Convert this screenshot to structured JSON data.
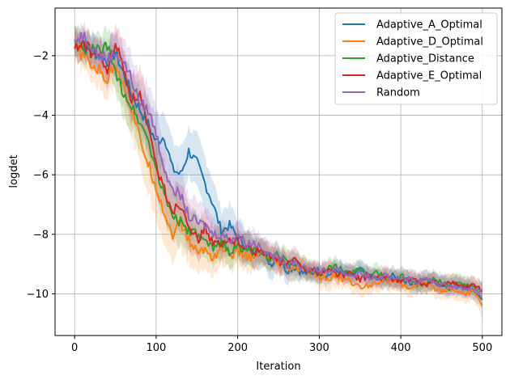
{
  "chart_data": {
    "type": "line",
    "title": "",
    "xlabel": "Iteration",
    "ylabel": "logdet",
    "xlim": [
      -24,
      524
    ],
    "ylim": [
      -11.4,
      -0.4
    ],
    "xticks": [
      0,
      100,
      200,
      300,
      400,
      500
    ],
    "yticks": [
      -10,
      -8,
      -6,
      -4,
      -2
    ],
    "grid": true,
    "legend_position": "top-right",
    "series": [
      {
        "name": "Adaptive_A_Optimal",
        "color": "#1f77b4",
        "x": [
          0,
          10,
          20,
          30,
          40,
          50,
          60,
          70,
          80,
          90,
          100,
          110,
          120,
          130,
          140,
          150,
          160,
          170,
          180,
          190,
          200,
          210,
          220,
          230,
          240,
          250,
          260,
          270,
          280,
          290,
          300,
          310,
          320,
          330,
          340,
          350,
          360,
          370,
          380,
          390,
          400,
          410,
          420,
          430,
          440,
          450,
          460,
          470,
          480,
          490,
          500
        ],
        "y": [
          -1.5,
          -1.7,
          -1.8,
          -2.0,
          -2.2,
          -1.9,
          -2.6,
          -3.3,
          -3.8,
          -4.3,
          -4.9,
          -4.7,
          -5.8,
          -6.0,
          -5.2,
          -5.6,
          -6.3,
          -7.0,
          -7.9,
          -7.7,
          -8.1,
          -8.4,
          -8.7,
          -8.5,
          -9.0,
          -8.8,
          -9.2,
          -9.1,
          -9.3,
          -9.3,
          -9.2,
          -9.4,
          -9.2,
          -9.3,
          -9.4,
          -9.2,
          -9.4,
          -9.5,
          -9.6,
          -9.4,
          -9.5,
          -9.6,
          -9.7,
          -9.5,
          -9.6,
          -9.7,
          -9.8,
          -9.7,
          -9.8,
          -9.9,
          -10.2
        ],
        "band": [
          0.5,
          0.5,
          0.5,
          0.6,
          0.6,
          0.7,
          0.7,
          0.8,
          0.8,
          0.9,
          0.9,
          0.9,
          0.9,
          0.9,
          0.8,
          0.9,
          0.9,
          0.8,
          0.7,
          0.7,
          0.6,
          0.6,
          0.5,
          0.5,
          0.5,
          0.4,
          0.4,
          0.4,
          0.3,
          0.3,
          0.3,
          0.3,
          0.3,
          0.3,
          0.3,
          0.3,
          0.3,
          0.3,
          0.3,
          0.3,
          0.3,
          0.3,
          0.3,
          0.3,
          0.3,
          0.3,
          0.3,
          0.3,
          0.3,
          0.3,
          0.3
        ]
      },
      {
        "name": "Adaptive_D_Optimal",
        "color": "#ff7f0e",
        "x": [
          0,
          10,
          20,
          30,
          40,
          50,
          60,
          70,
          80,
          90,
          100,
          110,
          120,
          130,
          140,
          150,
          160,
          170,
          180,
          190,
          200,
          210,
          220,
          230,
          240,
          250,
          260,
          270,
          280,
          290,
          300,
          310,
          320,
          330,
          340,
          350,
          360,
          370,
          380,
          390,
          400,
          410,
          420,
          430,
          440,
          450,
          460,
          470,
          480,
          490,
          500
        ],
        "y": [
          -1.6,
          -2.0,
          -2.3,
          -2.5,
          -2.8,
          -2.2,
          -3.0,
          -3.8,
          -4.8,
          -5.6,
          -6.4,
          -7.3,
          -8.0,
          -7.6,
          -8.2,
          -8.6,
          -8.5,
          -8.8,
          -8.4,
          -8.7,
          -8.6,
          -8.7,
          -8.8,
          -8.6,
          -8.9,
          -9.0,
          -9.1,
          -9.2,
          -9.1,
          -9.3,
          -9.4,
          -9.5,
          -9.4,
          -9.5,
          -9.6,
          -9.8,
          -9.7,
          -9.6,
          -9.5,
          -9.6,
          -9.7,
          -9.8,
          -9.7,
          -9.6,
          -9.8,
          -9.9,
          -9.8,
          -9.9,
          -10.0,
          -9.9,
          -10.4
        ],
        "band": [
          0.5,
          0.5,
          0.5,
          0.6,
          0.6,
          0.7,
          0.8,
          0.9,
          0.9,
          1.0,
          1.0,
          1.0,
          0.9,
          0.9,
          0.8,
          0.7,
          0.7,
          0.6,
          0.6,
          0.5,
          0.5,
          0.5,
          0.5,
          0.4,
          0.4,
          0.4,
          0.4,
          0.4,
          0.3,
          0.3,
          0.4,
          0.4,
          0.4,
          0.3,
          0.3,
          0.3,
          0.3,
          0.3,
          0.3,
          0.3,
          0.3,
          0.3,
          0.3,
          0.3,
          0.3,
          0.3,
          0.3,
          0.3,
          0.3,
          0.3,
          0.4
        ]
      },
      {
        "name": "Adaptive_Distance",
        "color": "#2ca02c",
        "x": [
          0,
          10,
          20,
          30,
          40,
          50,
          60,
          70,
          80,
          90,
          100,
          110,
          120,
          130,
          140,
          150,
          160,
          170,
          180,
          190,
          200,
          210,
          220,
          230,
          240,
          250,
          260,
          270,
          280,
          290,
          300,
          310,
          320,
          330,
          340,
          350,
          360,
          370,
          380,
          390,
          400,
          410,
          420,
          430,
          440,
          450,
          460,
          470,
          480,
          490,
          500
        ],
        "y": [
          -1.5,
          -1.7,
          -1.8,
          -1.8,
          -1.7,
          -2.6,
          -3.2,
          -3.7,
          -4.2,
          -4.8,
          -5.8,
          -6.7,
          -7.3,
          -7.6,
          -7.9,
          -8.0,
          -8.3,
          -8.5,
          -8.2,
          -8.6,
          -8.4,
          -8.5,
          -8.6,
          -8.7,
          -8.8,
          -8.7,
          -8.9,
          -9.0,
          -9.1,
          -9.2,
          -9.3,
          -9.2,
          -9.1,
          -9.2,
          -9.3,
          -9.2,
          -9.4,
          -9.3,
          -9.4,
          -9.5,
          -9.4,
          -9.5,
          -9.6,
          -9.7,
          -9.5,
          -9.6,
          -9.7,
          -9.6,
          -9.7,
          -9.8,
          -9.9
        ],
        "band": [
          0.5,
          0.5,
          0.5,
          0.5,
          0.6,
          0.7,
          0.8,
          0.8,
          0.9,
          0.9,
          0.9,
          0.9,
          0.8,
          0.8,
          0.7,
          0.7,
          0.6,
          0.6,
          0.6,
          0.5,
          0.5,
          0.5,
          0.5,
          0.4,
          0.4,
          0.4,
          0.4,
          0.4,
          0.4,
          0.3,
          0.3,
          0.3,
          0.3,
          0.3,
          0.3,
          0.3,
          0.3,
          0.3,
          0.3,
          0.3,
          0.3,
          0.3,
          0.3,
          0.3,
          0.3,
          0.3,
          0.3,
          0.3,
          0.3,
          0.3,
          0.3
        ]
      },
      {
        "name": "Adaptive_E_Optimal",
        "color": "#d62728",
        "x": [
          0,
          10,
          20,
          30,
          40,
          50,
          60,
          70,
          80,
          90,
          100,
          110,
          120,
          130,
          140,
          150,
          160,
          170,
          180,
          190,
          200,
          210,
          220,
          230,
          240,
          250,
          260,
          270,
          280,
          290,
          300,
          310,
          320,
          330,
          340,
          350,
          360,
          370,
          380,
          390,
          400,
          410,
          420,
          430,
          440,
          450,
          460,
          470,
          480,
          490,
          500
        ],
        "y": [
          -1.8,
          -1.5,
          -1.9,
          -2.0,
          -2.5,
          -1.6,
          -2.4,
          -3.5,
          -3.3,
          -4.5,
          -5.7,
          -6.5,
          -7.2,
          -7.0,
          -7.6,
          -8.2,
          -7.8,
          -8.3,
          -8.4,
          -8.2,
          -8.2,
          -8.4,
          -8.6,
          -8.5,
          -8.8,
          -8.9,
          -9.0,
          -8.9,
          -9.1,
          -9.2,
          -9.3,
          -9.2,
          -9.3,
          -9.4,
          -9.3,
          -9.5,
          -9.4,
          -9.5,
          -9.4,
          -9.5,
          -9.6,
          -9.5,
          -9.6,
          -9.7,
          -9.6,
          -9.7,
          -9.6,
          -9.7,
          -9.8,
          -9.7,
          -9.9
        ],
        "band": [
          0.5,
          0.5,
          0.5,
          0.6,
          0.6,
          0.7,
          0.7,
          0.8,
          0.9,
          0.9,
          0.9,
          0.9,
          0.8,
          0.8,
          0.8,
          0.7,
          0.6,
          0.6,
          0.5,
          0.5,
          0.5,
          0.5,
          0.5,
          0.4,
          0.4,
          0.4,
          0.4,
          0.4,
          0.3,
          0.3,
          0.3,
          0.3,
          0.3,
          0.3,
          0.3,
          0.3,
          0.3,
          0.3,
          0.3,
          0.3,
          0.3,
          0.3,
          0.3,
          0.3,
          0.3,
          0.3,
          0.3,
          0.3,
          0.3,
          0.3,
          0.3
        ]
      },
      {
        "name": "Random",
        "color": "#9467bd",
        "x": [
          0,
          10,
          20,
          30,
          40,
          50,
          60,
          70,
          80,
          90,
          100,
          110,
          120,
          130,
          140,
          150,
          160,
          170,
          180,
          190,
          200,
          210,
          220,
          230,
          240,
          250,
          260,
          270,
          280,
          290,
          300,
          310,
          320,
          330,
          340,
          350,
          360,
          370,
          380,
          390,
          400,
          410,
          420,
          430,
          440,
          450,
          460,
          470,
          480,
          490,
          500
        ],
        "y": [
          -1.5,
          -1.3,
          -1.6,
          -2.0,
          -2.1,
          -1.9,
          -2.2,
          -2.8,
          -3.6,
          -3.8,
          -4.6,
          -5.8,
          -6.4,
          -6.7,
          -7.4,
          -7.6,
          -7.7,
          -8.0,
          -8.0,
          -8.2,
          -8.0,
          -8.3,
          -8.3,
          -8.4,
          -8.7,
          -8.8,
          -9.0,
          -8.9,
          -9.1,
          -9.2,
          -9.2,
          -9.3,
          -9.1,
          -9.3,
          -9.4,
          -9.3,
          -9.4,
          -9.5,
          -9.4,
          -9.5,
          -9.4,
          -9.5,
          -9.6,
          -9.5,
          -9.6,
          -9.7,
          -9.7,
          -9.8,
          -9.8,
          -9.9,
          -9.9
        ],
        "band": [
          0.4,
          0.4,
          0.5,
          0.5,
          0.6,
          0.7,
          0.8,
          0.8,
          0.9,
          0.9,
          0.9,
          0.8,
          0.8,
          0.8,
          0.7,
          0.7,
          0.6,
          0.6,
          0.5,
          0.5,
          0.5,
          0.5,
          0.5,
          0.4,
          0.4,
          0.4,
          0.4,
          0.4,
          0.3,
          0.3,
          0.3,
          0.3,
          0.3,
          0.3,
          0.3,
          0.3,
          0.3,
          0.3,
          0.3,
          0.3,
          0.3,
          0.3,
          0.3,
          0.3,
          0.3,
          0.3,
          0.3,
          0.3,
          0.3,
          0.3,
          0.3
        ]
      }
    ]
  }
}
